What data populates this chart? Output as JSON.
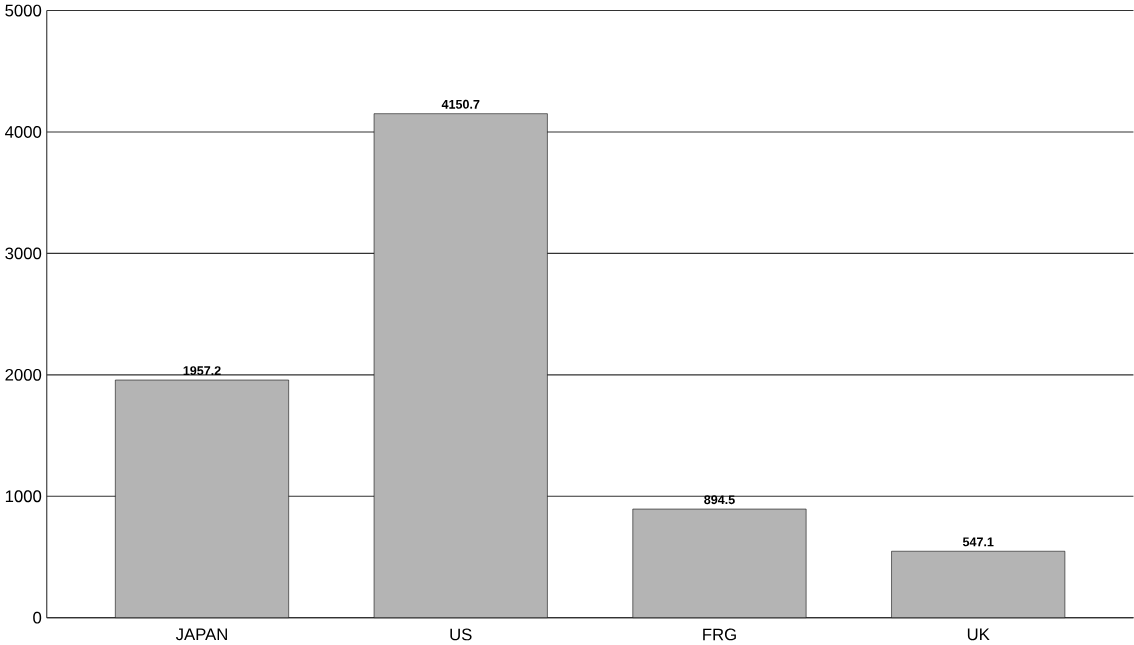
{
  "chart_data": {
    "type": "bar",
    "categories": [
      "JAPAN",
      "US",
      "FRG",
      "UK"
    ],
    "values": [
      1957.2,
      4150.7,
      894.5,
      547.1
    ],
    "color": "#b4b4b4",
    "ylim": [
      0,
      5000
    ],
    "yticks": [
      0,
      1000,
      2000,
      3000,
      4000,
      5000
    ],
    "grid": "y",
    "data_labels": true
  }
}
